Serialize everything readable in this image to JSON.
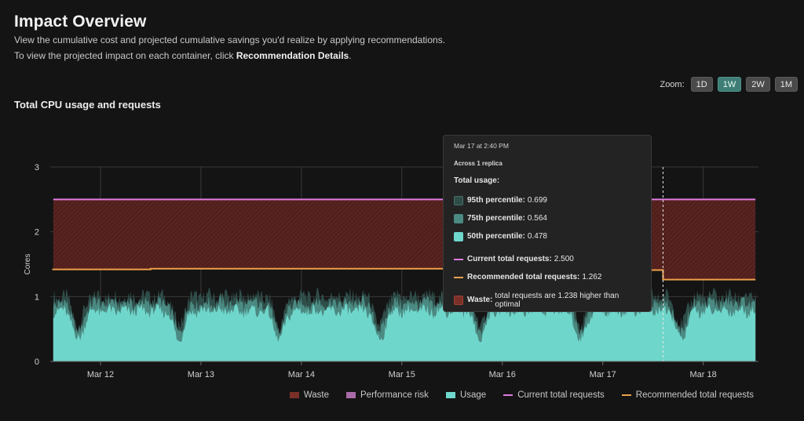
{
  "header": {
    "title": "Impact Overview",
    "description_line1": "View the cumulative cost and projected cumulative savings you'd realize by applying recommendations.",
    "description_line2_prefix": "To view the projected impact on each container, click ",
    "description_line2_link": "Recommendation Details",
    "description_line2_suffix": "."
  },
  "zoom": {
    "label": "Zoom:",
    "options": [
      "1D",
      "1W",
      "2W",
      "1M"
    ],
    "selected": "1W"
  },
  "colors": {
    "waste": "#5a2220",
    "current": "#e07be0",
    "recommended": "#f0a04a",
    "p95": "#2f4d49",
    "p75": "#4b8a82",
    "p50": "#6fd6cb"
  },
  "chart_data": {
    "type": "area",
    "title": "Total CPU usage and requests",
    "ylabel": "Cores",
    "ylim": [
      0,
      3
    ],
    "yticks": [
      0,
      1,
      2,
      3
    ],
    "xticks": [
      "Mar 12",
      "Mar 13",
      "Mar 14",
      "Mar 15",
      "Mar 16",
      "Mar 17",
      "Mar 18"
    ],
    "x_range_days": [
      11.5,
      18.55
    ],
    "current_total_requests": {
      "name": "Current total requests",
      "value": 2.5
    },
    "recommended_total_requests": {
      "name": "Recommended total requests",
      "segments": [
        {
          "from": 11.52,
          "to": 12.5,
          "value": 1.42
        },
        {
          "from": 12.5,
          "to": 16.0,
          "value": 1.43
        },
        {
          "from": 16.0,
          "to": 17.6,
          "value": 1.41
        },
        {
          "from": 17.6,
          "to": 18.52,
          "value": 1.262
        }
      ]
    },
    "usage_series": [
      {
        "name": "95th percentile",
        "base": 1.0,
        "amp": 0.22
      },
      {
        "name": "75th percentile",
        "base": 0.9,
        "amp": 0.19
      },
      {
        "name": "50th percentile",
        "base": 0.78,
        "amp": 0.16
      }
    ],
    "hover_x_day": 17.6,
    "legend": [
      "Waste",
      "Performance risk",
      "Usage",
      "Current total requests",
      "Recommended total requests"
    ],
    "tooltip": {
      "date": "Mar 17 at 2:40 PM",
      "replicas": "Across 1 replica",
      "section_title": "Total usage:",
      "p95_label": "95th percentile:",
      "p95_value": "0.699",
      "p75_label": "75th percentile:",
      "p75_value": "0.564",
      "p50_label": "50th percentile:",
      "p50_value": "0.478",
      "current_label": "Current total requests:",
      "current_value": "2.500",
      "recommended_label": "Recommended total requests:",
      "recommended_value": "1.262",
      "waste_label": "Waste:",
      "waste_text": "total requests are 1.238 higher than optimal"
    }
  }
}
